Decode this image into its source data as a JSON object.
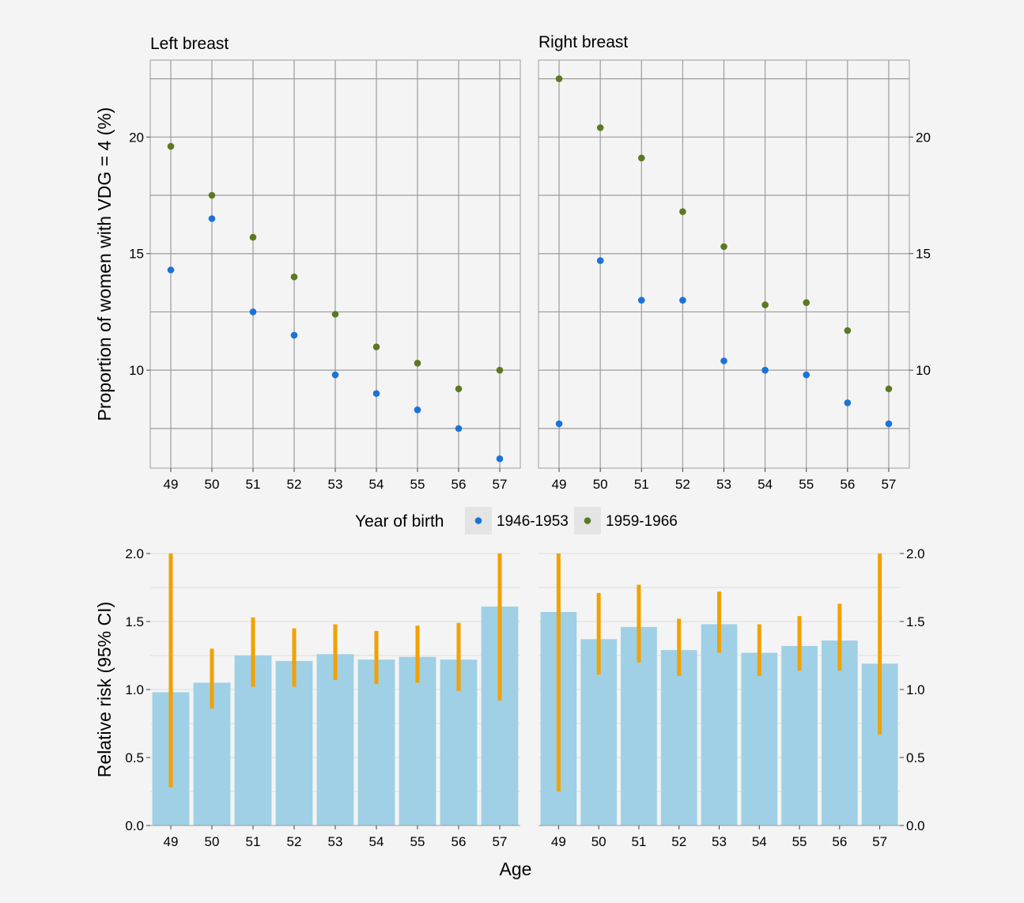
{
  "chart_data": [
    {
      "type": "scatter",
      "title": "Left breast",
      "ylabel": "Proportion of women with VDG = 4 (%)",
      "xlabel": "",
      "categories": [
        "49",
        "50",
        "51",
        "52",
        "53",
        "54",
        "55",
        "56",
        "57"
      ],
      "ylim": [
        5.8,
        23.3
      ],
      "yticks": [
        "10",
        "15",
        "20"
      ],
      "grid": true,
      "series": [
        {
          "name": "1946-1953",
          "values": [
            14.3,
            16.5,
            12.5,
            11.5,
            9.8,
            9.0,
            8.3,
            7.5,
            6.2
          ]
        },
        {
          "name": "1959-1966",
          "values": [
            19.6,
            17.5,
            15.7,
            14.0,
            12.4,
            11.0,
            10.3,
            9.2,
            10.0
          ]
        }
      ]
    },
    {
      "type": "scatter",
      "title": "Right breast",
      "xlabel": "",
      "categories": [
        "49",
        "50",
        "51",
        "52",
        "53",
        "54",
        "55",
        "56",
        "57"
      ],
      "ylim": [
        5.8,
        23.3
      ],
      "yticks": [
        "10",
        "15",
        "20"
      ],
      "grid": true,
      "series": [
        {
          "name": "1946-1953",
          "values": [
            7.7,
            14.7,
            13.0,
            13.0,
            10.4,
            10.0,
            9.8,
            8.6,
            7.7
          ]
        },
        {
          "name": "1959-1966",
          "values": [
            22.5,
            20.4,
            19.1,
            16.8,
            15.3,
            12.8,
            12.9,
            11.7,
            9.2
          ]
        }
      ]
    },
    {
      "type": "bar",
      "title": "",
      "ylabel": "Relative risk (95% CI)",
      "xlabel": "Age",
      "categories": [
        "49",
        "50",
        "51",
        "52",
        "53",
        "54",
        "55",
        "56",
        "57"
      ],
      "ylim": [
        0,
        2.0
      ],
      "yticks": [
        "0.0",
        "0.5",
        "1.0",
        "1.5",
        "2.0"
      ],
      "grid": true,
      "values": [
        0.98,
        1.05,
        1.25,
        1.21,
        1.26,
        1.22,
        1.24,
        1.22,
        1.61
      ],
      "ci_low": [
        0.28,
        0.86,
        1.02,
        1.02,
        1.07,
        1.04,
        1.05,
        0.99,
        0.92
      ],
      "ci_high": [
        2.0,
        1.3,
        1.53,
        1.45,
        1.48,
        1.43,
        1.47,
        1.49,
        2.0
      ]
    },
    {
      "type": "bar",
      "title": "",
      "xlabel": "Age",
      "categories": [
        "49",
        "50",
        "51",
        "52",
        "53",
        "54",
        "55",
        "56",
        "57"
      ],
      "ylim": [
        0,
        2.0
      ],
      "yticks": [
        "0.0",
        "0.5",
        "1.0",
        "1.5",
        "2.0"
      ],
      "grid": true,
      "values": [
        1.57,
        1.37,
        1.46,
        1.29,
        1.48,
        1.27,
        1.32,
        1.36,
        1.19
      ],
      "ci_low": [
        0.25,
        1.11,
        1.2,
        1.1,
        1.27,
        1.1,
        1.14,
        1.14,
        0.67
      ],
      "ci_high": [
        2.0,
        1.71,
        1.77,
        1.52,
        1.72,
        1.48,
        1.54,
        1.63,
        2.0
      ]
    }
  ],
  "legend": {
    "title": "Year of birth",
    "placement": "center",
    "items": [
      {
        "label": "1946-1953",
        "color": "#1a73d9"
      },
      {
        "label": "1959-1966",
        "color": "#5a7a22"
      }
    ]
  },
  "colors": {
    "background": "#f4f4f4",
    "panel": "#f4f4f4",
    "grid_major": "#9c9c9c",
    "grid_bar": "#dcdcdc",
    "bar_fill": "#9fd0e6",
    "error_bar": "#f2a100",
    "series_a": "#1a73d9",
    "series_b": "#5a7a22",
    "legend_key_bg": "#e4e4e4"
  }
}
